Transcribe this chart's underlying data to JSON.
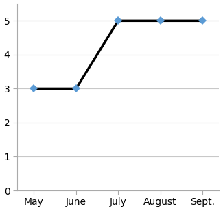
{
  "x_labels": [
    "May",
    "June",
    "July",
    "August",
    "Sept."
  ],
  "y_values": [
    3,
    3,
    5,
    5,
    5
  ],
  "line_color": "black",
  "line_width": 2.5,
  "marker_color": "#5B9BD5",
  "marker_style": "D",
  "marker_size": 6,
  "ylim": [
    0,
    5.5
  ],
  "yticks": [
    0,
    1,
    2,
    3,
    4,
    5
  ],
  "background_color": "#ffffff",
  "grid_color": "#c8c8c8",
  "tick_label_fontsize": 10,
  "spine_color": "#aaaaaa"
}
